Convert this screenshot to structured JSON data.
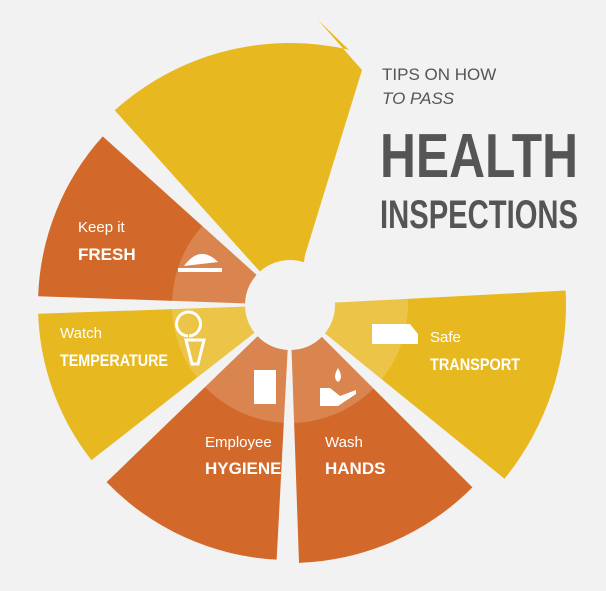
{
  "header": {
    "line1": "TIPS ON HOW",
    "line2": "TO PASS",
    "title1": "HEALTH",
    "title2": "INSPECTIONS"
  },
  "segments": [
    {
      "small": "Keep it",
      "big": "FRESH"
    },
    {
      "small": "Watch",
      "big": "TEMPERATURE"
    },
    {
      "small": "Employee",
      "big": "HYGIENE"
    },
    {
      "small": "Wash",
      "big": "HANDS"
    },
    {
      "small": "Safe",
      "big": "TRANSPORT"
    }
  ]
}
